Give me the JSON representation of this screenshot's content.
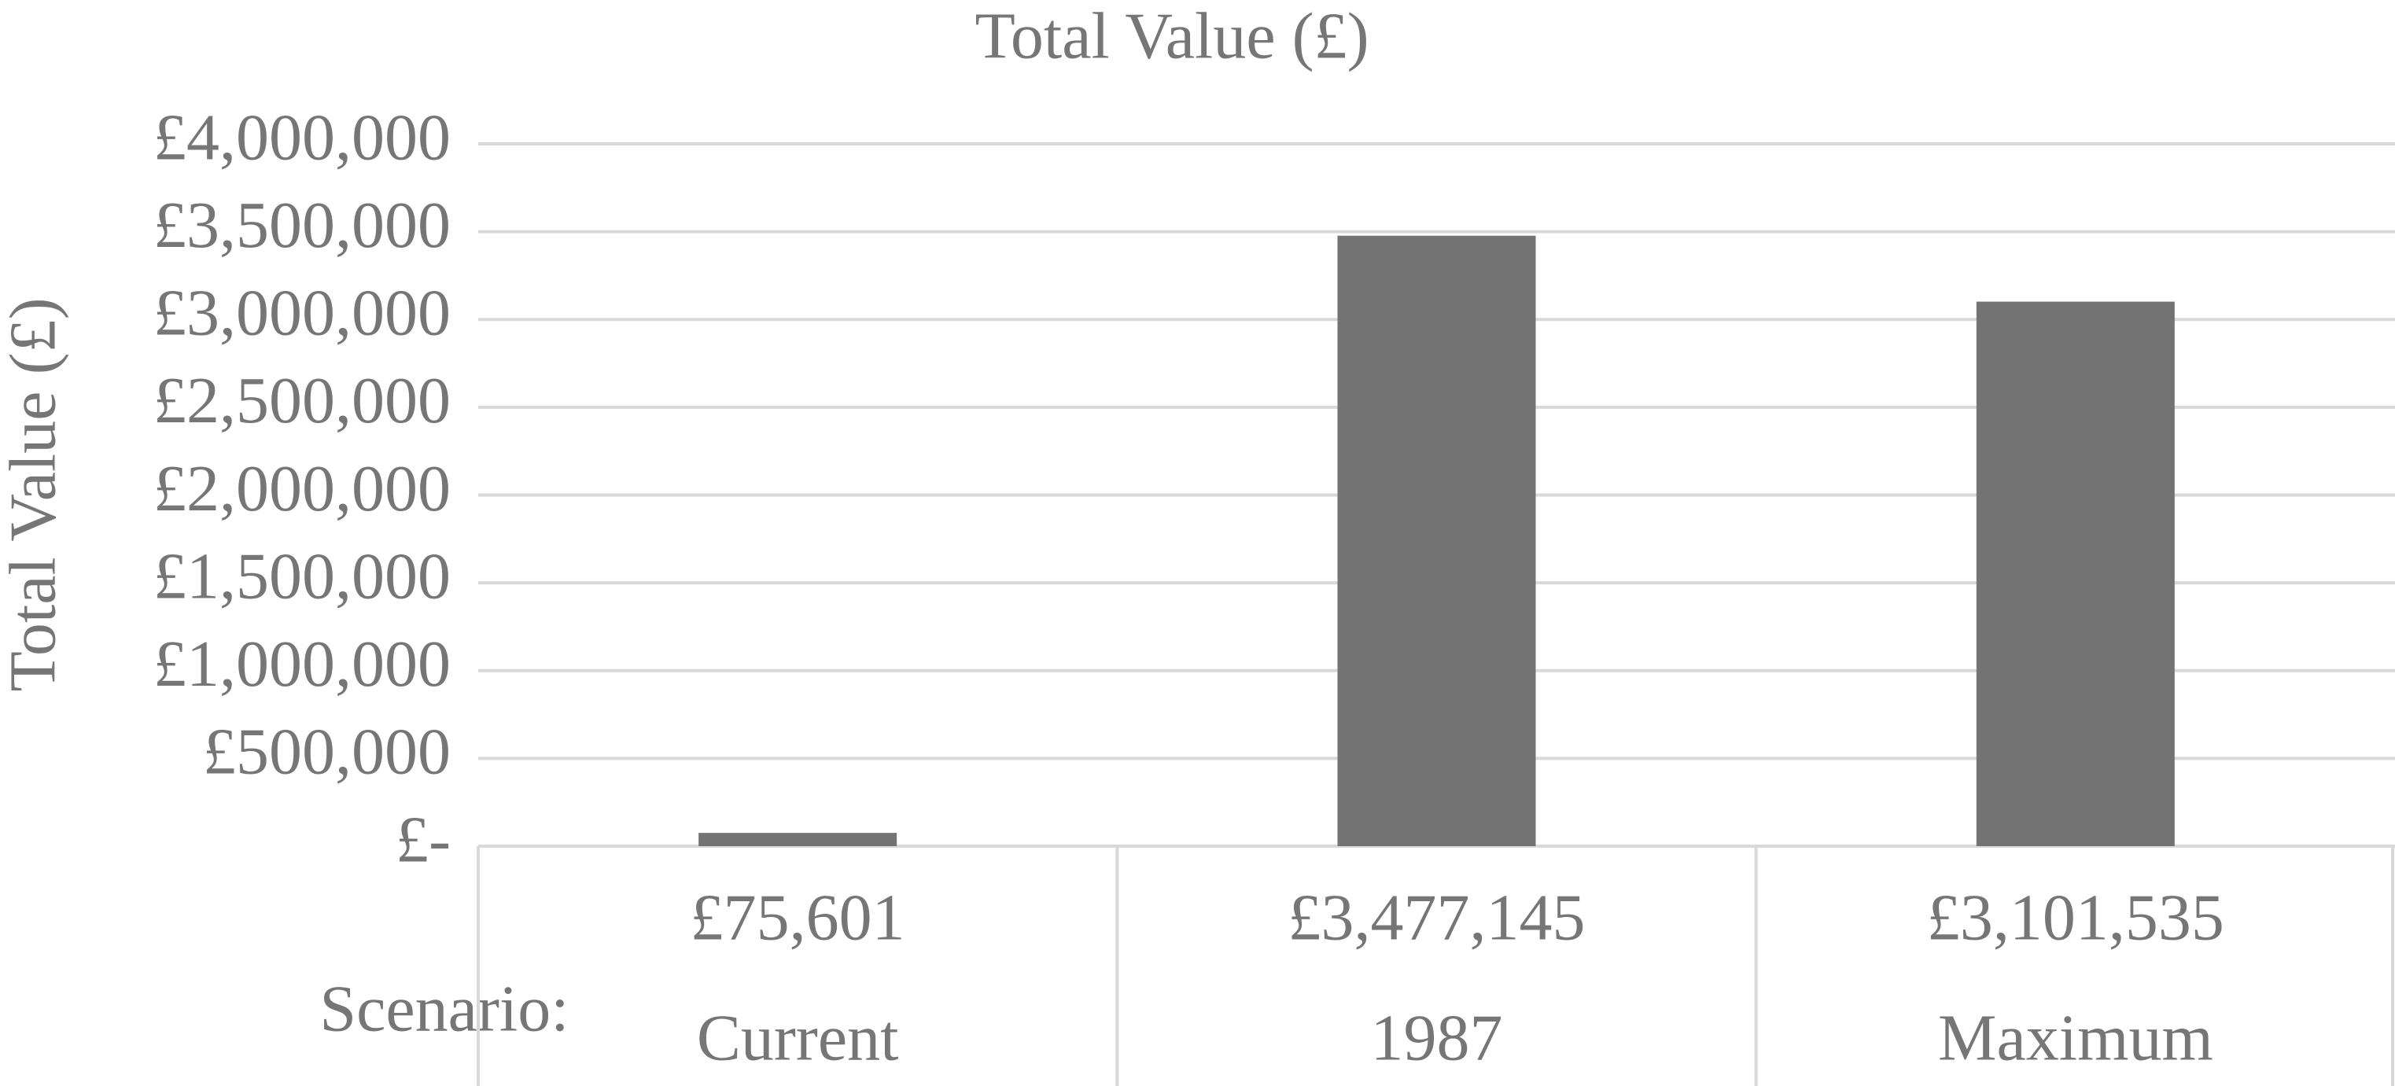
{
  "chart_data": {
    "type": "bar",
    "title": "Total Value (£)",
    "y_label": "Total Value (£)",
    "x_label": "Scenario:",
    "categories": [
      "Current",
      "1987",
      "Maximum"
    ],
    "values": [
      75601,
      3477145,
      3101535
    ],
    "value_labels": [
      "£75,601",
      "£3,477,145",
      "£3,101,535"
    ],
    "color": "#737373",
    "ylim": [
      0,
      4000000
    ],
    "yticks": [
      {
        "value": 0,
        "label": "£-"
      },
      {
        "value": 500000,
        "label": "£500,000"
      },
      {
        "value": 1000000,
        "label": "£1,000,000"
      },
      {
        "value": 1500000,
        "label": "£1,500,000"
      },
      {
        "value": 2000000,
        "label": "£2,000,000"
      },
      {
        "value": 2500000,
        "label": "£2,500,000"
      },
      {
        "value": 3000000,
        "label": "£3,000,000"
      },
      {
        "value": 3500000,
        "label": "£3,500,000"
      },
      {
        "value": 4000000,
        "label": "£4,000,000"
      }
    ],
    "grid": true
  }
}
